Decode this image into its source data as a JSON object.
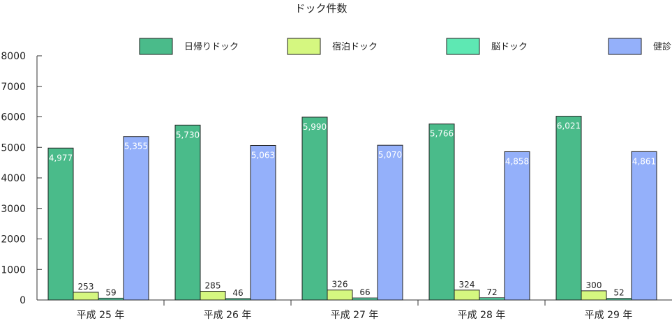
{
  "chart_data": {
    "type": "bar",
    "title": "ドック件数",
    "xlabel": "",
    "ylabel": "",
    "ylim": [
      0,
      8000
    ],
    "yticks": [
      0,
      1000,
      2000,
      3000,
      4000,
      5000,
      6000,
      7000,
      8000
    ],
    "grid": false,
    "legend_position": "top",
    "categories": [
      "平成 25 年",
      "平成 26 年",
      "平成 27 年",
      "平成 28 年",
      "平成 29 年"
    ],
    "series": [
      {
        "name": "日帰りドック",
        "color": "#4abb8a",
        "values": [
          4977,
          5730,
          5990,
          5766,
          6021
        ],
        "labels": [
          "4,977",
          "5,730",
          "5,990",
          "5,766",
          "6,021"
        ],
        "label_style": "inside"
      },
      {
        "name": "宿泊ドック",
        "color": "#d5f780",
        "values": [
          253,
          285,
          326,
          324,
          300
        ],
        "labels": [
          "253",
          "285",
          "326",
          "324",
          "300"
        ],
        "label_style": "above"
      },
      {
        "name": "脳ドック",
        "color": "#5ee8b3",
        "values": [
          59,
          46,
          66,
          72,
          52
        ],
        "labels": [
          "59",
          "46",
          "66",
          "72",
          "52"
        ],
        "label_style": "above"
      },
      {
        "name": "健診",
        "color": "#94b0fa",
        "values": [
          5355,
          5063,
          5070,
          4858,
          4861
        ],
        "labels": [
          "5,355",
          "5,063",
          "5,070",
          "4,858",
          "4,861"
        ],
        "label_style": "inside"
      }
    ]
  }
}
